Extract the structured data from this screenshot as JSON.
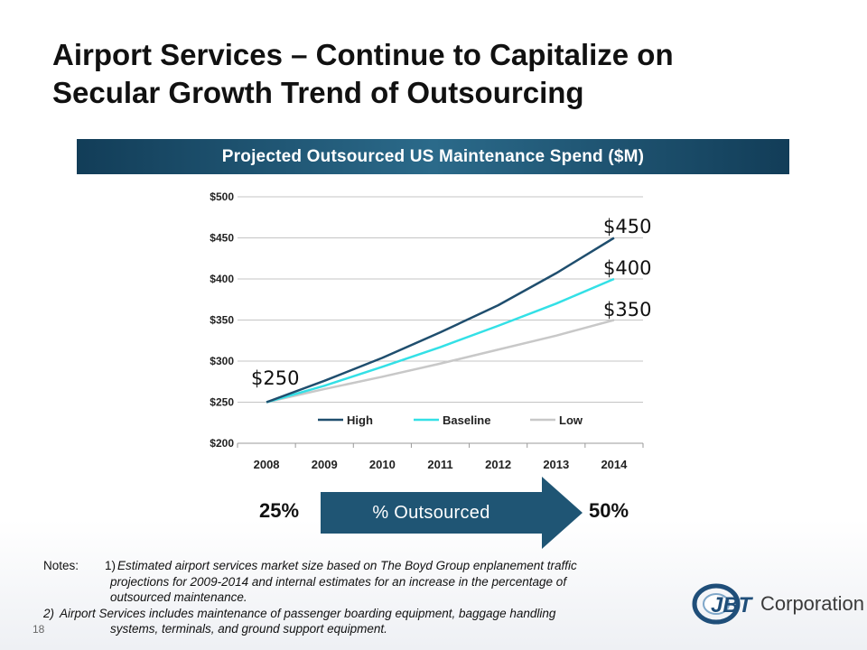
{
  "slide": {
    "title_line1": "Airport Services – Continue to Capitalize on",
    "title_line2": "Secular Growth Trend of Outsourcing",
    "page_number": "18"
  },
  "chart_banner": "Projected Outsourced US Maintenance Spend ($M)",
  "chart_data": {
    "type": "line",
    "title": "Projected Outsourced US Maintenance Spend ($M)",
    "x": [
      "2008",
      "2009",
      "2010",
      "2011",
      "2012",
      "2013",
      "2014"
    ],
    "series": [
      {
        "name": "High",
        "color": "#1f4e6e",
        "values": [
          250,
          276,
          304,
          335,
          368,
          407,
          450
        ]
      },
      {
        "name": "Baseline",
        "color": "#33e0e6",
        "values": [
          250,
          270,
          293,
          317,
          343,
          370,
          400
        ]
      },
      {
        "name": "Low",
        "color": "#c8c8c8",
        "values": [
          250,
          266,
          281,
          297,
          314,
          331,
          350
        ]
      }
    ],
    "y_ticks": [
      "$200",
      "$250",
      "$300",
      "$350",
      "$400",
      "$450",
      "$500"
    ],
    "ylim": [
      200,
      500
    ],
    "annotations": {
      "start": "$250",
      "high_end": "$450",
      "baseline_end": "$400",
      "low_end": "$350"
    },
    "grid": true,
    "legend_position": "bottom"
  },
  "outsourced": {
    "from": "25%",
    "label": "% Outsourced",
    "to": "50%",
    "arrow_color": "#1f5574"
  },
  "notes": {
    "prefix": "Notes:",
    "item1_num": "1)",
    "item1_line1": "Estimated airport services market size based on The Boyd Group enplanement traffic",
    "item1_line2": "projections for 2009-2014 and internal estimates for an increase in the percentage of",
    "item1_line3": "outsourced maintenance.",
    "item2_num": "2)",
    "item2_line1": "Airport Services includes maintenance of passenger boarding equipment, baggage handling",
    "item2_line2": "systems, terminals, and ground support equipment."
  },
  "logo": {
    "mark_text": "JBT",
    "company": "Corporation",
    "mark_color": "#1f4e79"
  }
}
